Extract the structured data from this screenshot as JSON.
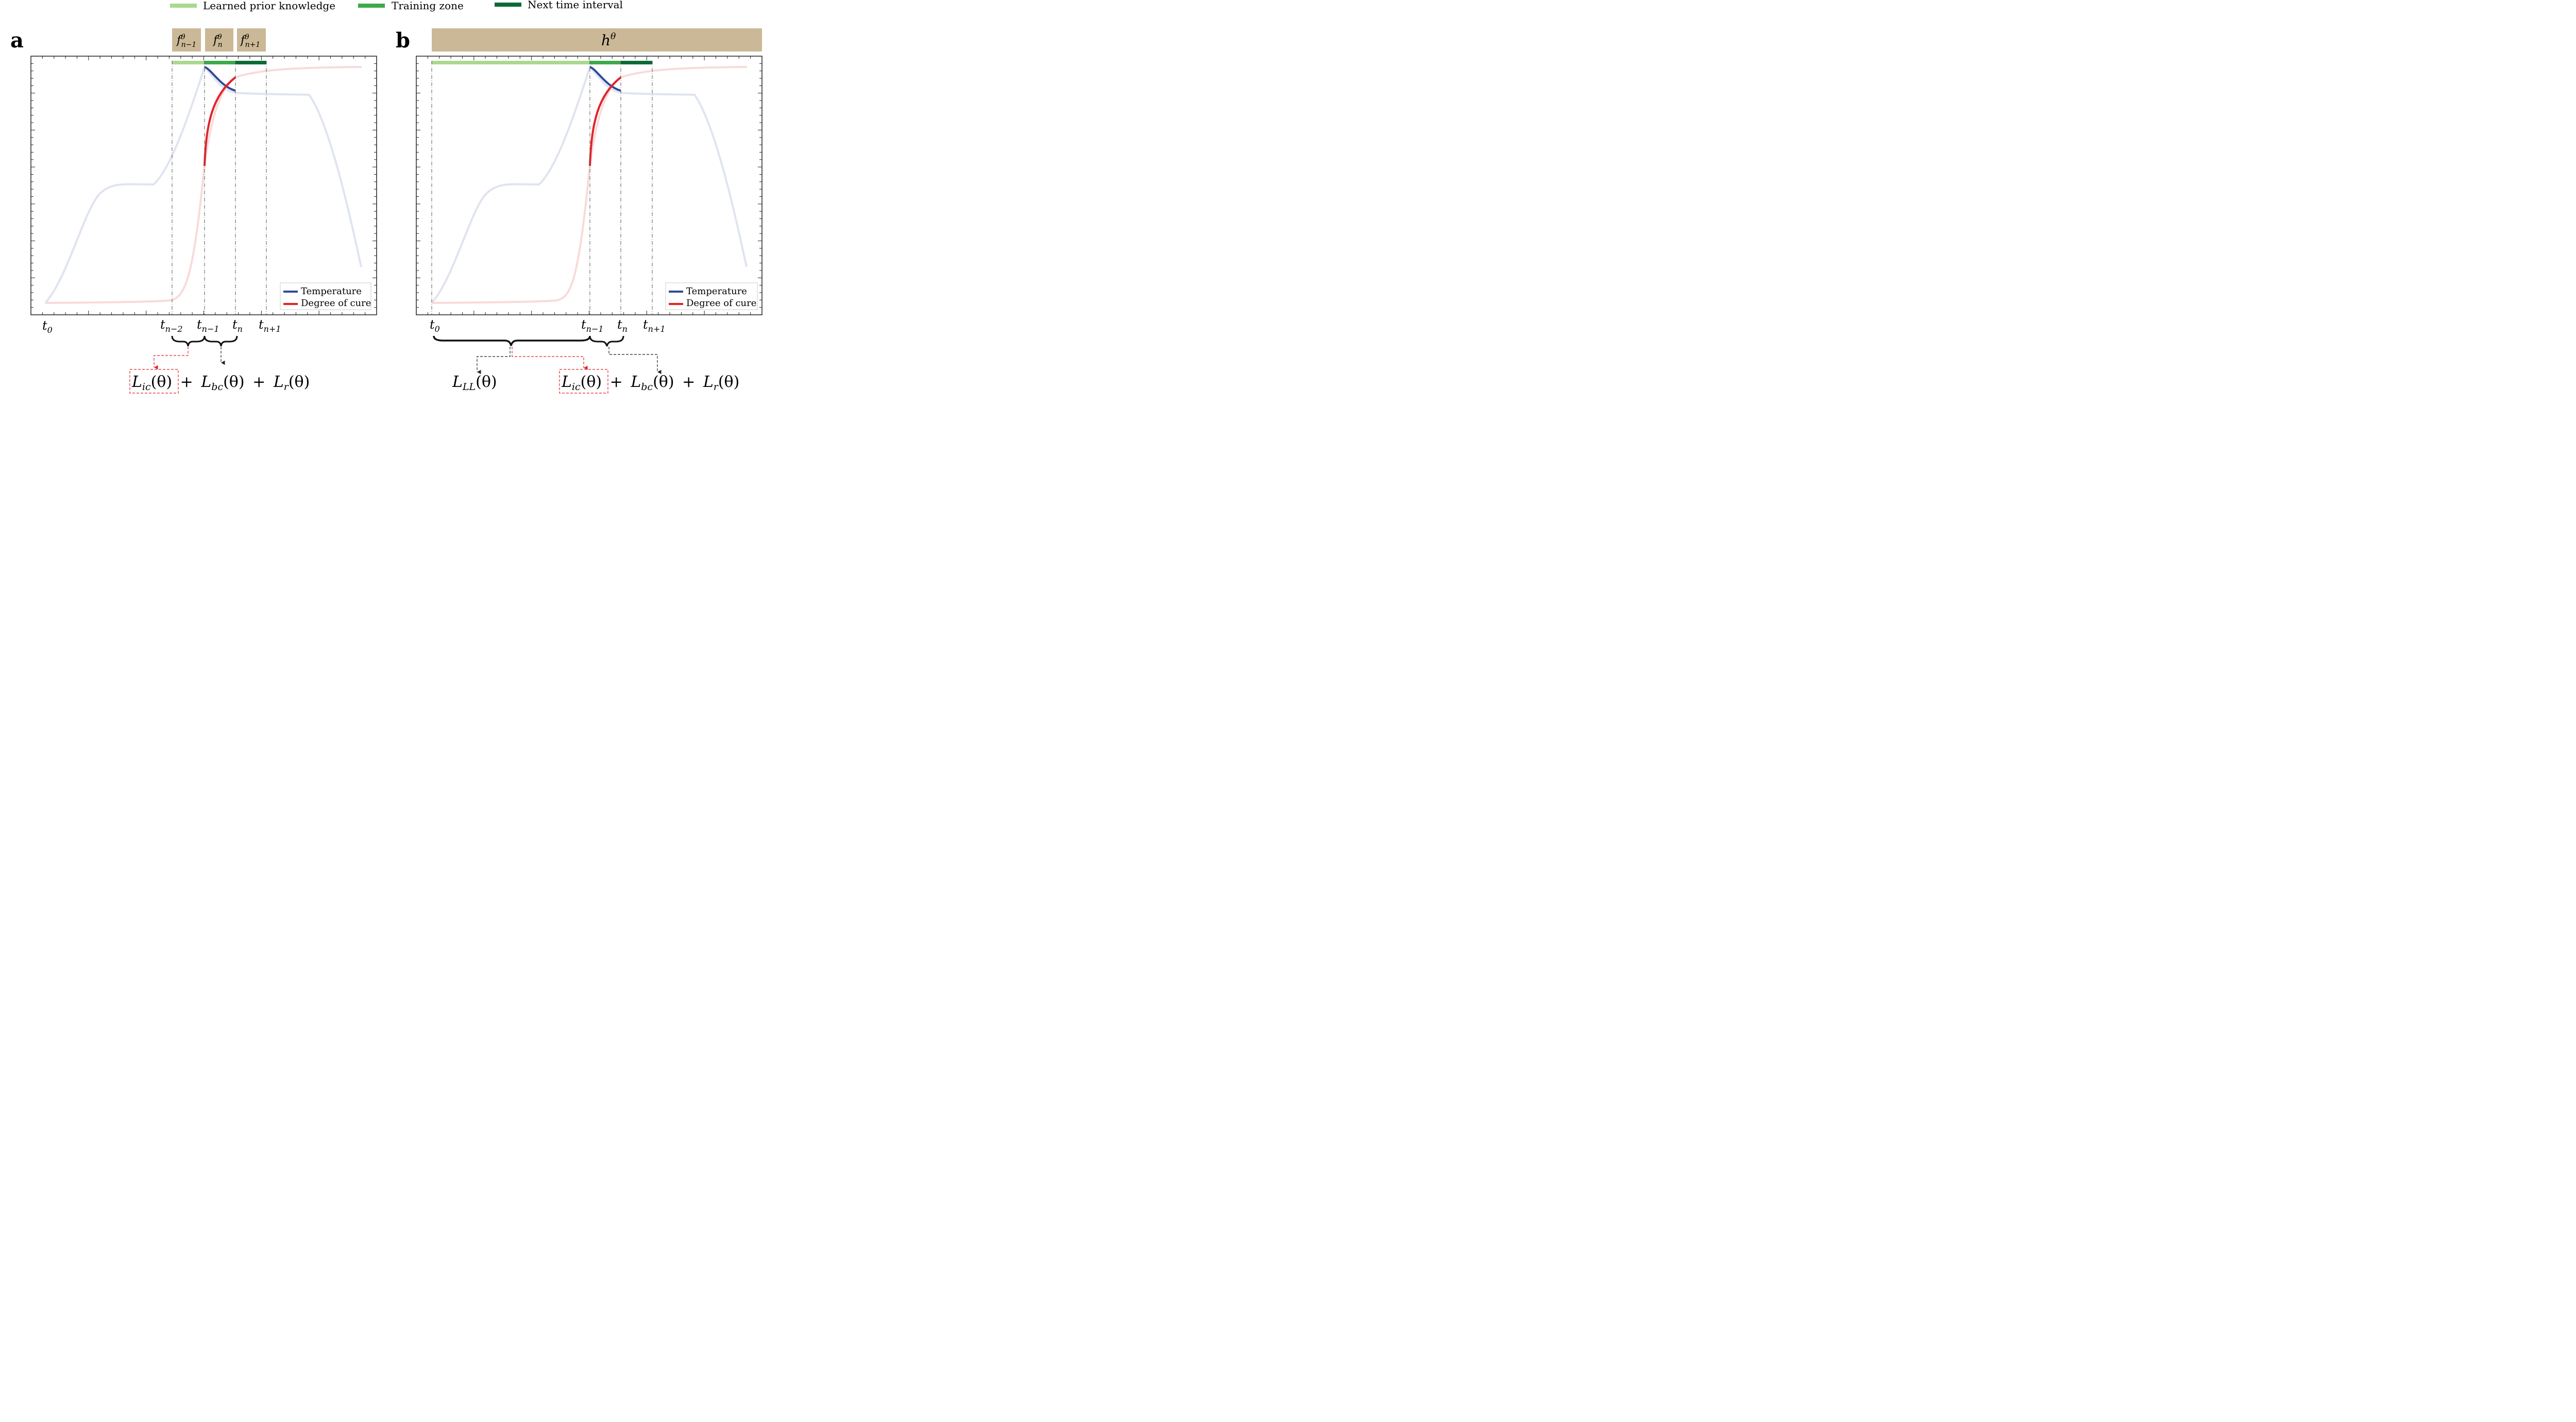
{
  "legend_top": {
    "items": [
      {
        "label": "Learned prior knowledge",
        "color": "#a9d88f"
      },
      {
        "label": "Training zone",
        "color": "#3daa4a"
      },
      {
        "label": "Next time interval",
        "color": "#0b6b35"
      }
    ]
  },
  "colors": {
    "temperature": "#2f4a9a",
    "cure": "#e2232a",
    "temperature_faded": "#dfe4f0",
    "cure_faded": "#f9dada",
    "box": "#cbb896",
    "loss_red": "#e2232a"
  },
  "panel_a": {
    "letter": "a",
    "networks": [
      {
        "base": "f",
        "sup": "θ",
        "sub": "n−1"
      },
      {
        "base": "f",
        "sup": "θ",
        "sub": "n"
      },
      {
        "base": "f",
        "sup": "θ",
        "sub": "n+1"
      }
    ],
    "time_labels": [
      {
        "base": "t",
        "sub": "0"
      },
      {
        "base": "t",
        "sub": "n−2"
      },
      {
        "base": "t",
        "sub": "n−1"
      },
      {
        "base": "t",
        "sub": "n"
      },
      {
        "base": "t",
        "sub": "n+1"
      }
    ],
    "legend": {
      "temperature": "Temperature",
      "cure": "Degree of cure"
    },
    "loss": [
      {
        "script": "L",
        "sub": "ic",
        "arg": "(θ)"
      },
      {
        "op": "+"
      },
      {
        "script": "L",
        "sub": "bc",
        "arg": "(θ)"
      },
      {
        "op": "+"
      },
      {
        "script": "L",
        "sub": "r",
        "arg": "(θ)"
      }
    ]
  },
  "panel_b": {
    "letter": "b",
    "network": {
      "base": "h",
      "sup": "θ"
    },
    "time_labels": [
      {
        "base": "t",
        "sub": "0"
      },
      {
        "base": "t",
        "sub": "n−1"
      },
      {
        "base": "t",
        "sub": "n"
      },
      {
        "base": "t",
        "sub": "n+1"
      }
    ],
    "legend": {
      "temperature": "Temperature",
      "cure": "Degree of cure"
    },
    "loss_ll": {
      "script": "L",
      "sub": "LL",
      "arg": "(θ)"
    },
    "loss": [
      {
        "script": "L",
        "sub": "ic",
        "arg": "(θ)"
      },
      {
        "op": "+"
      },
      {
        "script": "L",
        "sub": "bc",
        "arg": "(θ)"
      },
      {
        "op": "+"
      },
      {
        "script": "L",
        "sub": "r",
        "arg": "(θ)"
      }
    ]
  }
}
